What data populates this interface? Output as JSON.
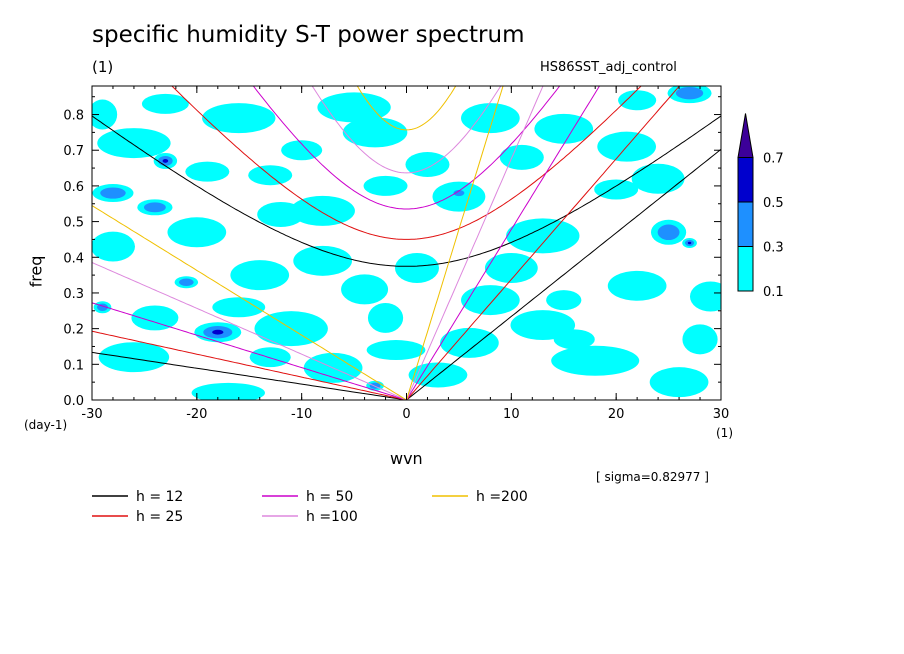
{
  "chart_data": {
    "type": "heatmap",
    "title": "specific humidity S-T power spectrum",
    "subtitle": "(1)",
    "experiment": "HS86SST_adj_control",
    "xlabel": "wvn",
    "ylabel": "freq",
    "x_unit": "(1)",
    "y_unit": "(day-1)",
    "sigma_note": "[ sigma=0.82977 ]",
    "xlim": [
      -30,
      30
    ],
    "ylim": [
      0,
      0.88
    ],
    "x_ticks": [
      -30,
      -20,
      -10,
      0,
      10,
      20,
      30
    ],
    "x_tick_labels": [
      "-30",
      "-20",
      "-10",
      "0",
      "10",
      "20",
      "30"
    ],
    "y_ticks": [
      0,
      0.1,
      0.2,
      0.3,
      0.4,
      0.5,
      0.6,
      0.7,
      0.8
    ],
    "y_tick_labels": [
      "0.0",
      "0.1",
      "0.2",
      "0.3",
      "0.4",
      "0.5",
      "0.6",
      "0.7",
      "0.8"
    ],
    "color_levels": [
      {
        "label": "0.1",
        "color": "#00ffff"
      },
      {
        "label": "0.3",
        "color": "#1e90ff"
      },
      {
        "label": "0.5",
        "color": "#0000cd"
      },
      {
        "label": "0.7",
        "color": "#3c0099"
      }
    ],
    "dispersion_curves": [
      {
        "name": "h = 12",
        "h": 12,
        "color": "#000000"
      },
      {
        "name": "h = 25",
        "h": 25,
        "color": "#e01010"
      },
      {
        "name": "h = 50",
        "h": 50,
        "color": "#cc00cc"
      },
      {
        "name": "h =100",
        "h": 100,
        "color": "#dd88dd"
      },
      {
        "name": "h =200",
        "h": 200,
        "color": "#f0c000"
      }
    ],
    "patches": [
      [
        -28,
        0.58,
        1.4,
        0.018,
        2
      ],
      [
        -23,
        0.67,
        0.8,
        0.016,
        3
      ],
      [
        -24,
        0.54,
        1.2,
        0.016,
        2
      ],
      [
        -18,
        0.19,
        1.6,
        0.02,
        3
      ],
      [
        -21,
        0.33,
        0.8,
        0.012,
        2
      ],
      [
        -14,
        0.35,
        2.0,
        0.03,
        1
      ],
      [
        -26,
        0.72,
        2.5,
        0.03,
        1
      ],
      [
        -29,
        0.26,
        0.6,
        0.012,
        2
      ],
      [
        -11,
        0.2,
        2.5,
        0.035,
        1
      ],
      [
        -5,
        0.82,
        2.5,
        0.03,
        1
      ],
      [
        3,
        0.07,
        2.0,
        0.025,
        1
      ],
      [
        -3,
        0.04,
        0.6,
        0.01,
        2
      ],
      [
        5,
        0.57,
        1.8,
        0.03,
        1
      ],
      [
        5,
        0.58,
        0.6,
        0.01,
        2
      ],
      [
        8,
        0.28,
        2.0,
        0.03,
        1
      ],
      [
        -2,
        0.6,
        1.5,
        0.02,
        1
      ],
      [
        -2,
        0.23,
        1.2,
        0.03,
        1
      ],
      [
        13,
        0.46,
        2.5,
        0.035,
        1
      ],
      [
        15,
        0.76,
        2.0,
        0.03,
        1
      ],
      [
        21,
        0.71,
        2.0,
        0.03,
        1
      ],
      [
        25,
        0.47,
        1.2,
        0.025,
        2
      ],
      [
        27,
        0.44,
        0.5,
        0.01,
        3
      ],
      [
        27,
        0.86,
        1.5,
        0.02,
        2
      ],
      [
        20,
        0.59,
        1.5,
        0.02,
        1
      ],
      [
        24,
        0.62,
        1.8,
        0.03,
        1
      ],
      [
        13,
        0.21,
        2.2,
        0.03,
        1
      ],
      [
        18,
        0.11,
        3.0,
        0.03,
        1
      ],
      [
        26,
        0.05,
        2.0,
        0.03,
        1
      ],
      [
        -8,
        0.53,
        2.2,
        0.03,
        1
      ],
      [
        -16,
        0.79,
        2.5,
        0.03,
        1
      ],
      [
        -20,
        0.47,
        2.0,
        0.03,
        1
      ],
      [
        -26,
        0.12,
        2.4,
        0.03,
        1
      ],
      [
        -17,
        0.02,
        2.5,
        0.02,
        1
      ],
      [
        -7,
        0.09,
        2.0,
        0.03,
        1
      ],
      [
        10,
        0.37,
        1.8,
        0.03,
        1
      ],
      [
        -8,
        0.39,
        2.0,
        0.03,
        1
      ],
      [
        1,
        0.37,
        1.5,
        0.03,
        1
      ],
      [
        22,
        0.32,
        2.0,
        0.03,
        1
      ],
      [
        -13,
        0.63,
        1.5,
        0.02,
        1
      ],
      [
        -3,
        0.75,
        2.2,
        0.03,
        1
      ],
      [
        2,
        0.66,
        1.5,
        0.025,
        1
      ],
      [
        11,
        0.68,
        1.5,
        0.025,
        1
      ],
      [
        -23,
        0.83,
        1.6,
        0.02,
        1
      ],
      [
        -28,
        0.43,
        1.5,
        0.03,
        1
      ],
      [
        29,
        0.29,
        1.4,
        0.03,
        1
      ],
      [
        -16,
        0.26,
        1.8,
        0.02,
        1
      ],
      [
        6,
        0.16,
        2.0,
        0.03,
        1
      ],
      [
        16,
        0.17,
        1.4,
        0.02,
        1
      ],
      [
        -12,
        0.52,
        1.6,
        0.025,
        1
      ],
      [
        -4,
        0.31,
        1.6,
        0.03,
        1
      ],
      [
        -24,
        0.23,
        1.6,
        0.025,
        1
      ],
      [
        -1,
        0.14,
        2.0,
        0.02,
        1
      ],
      [
        28,
        0.17,
        1.2,
        0.03,
        1
      ],
      [
        -10,
        0.7,
        1.4,
        0.02,
        1
      ],
      [
        8,
        0.79,
        2.0,
        0.03,
        1
      ],
      [
        -19,
        0.64,
        1.5,
        0.02,
        1
      ],
      [
        15,
        0.28,
        1.2,
        0.02,
        1
      ],
      [
        -29,
        0.8,
        1.0,
        0.03,
        1
      ],
      [
        22,
        0.84,
        1.3,
        0.02,
        1
      ],
      [
        -13,
        0.12,
        1.4,
        0.02,
        1
      ]
    ]
  },
  "legend": [
    {
      "label": "h = 12",
      "color": "#000000"
    },
    {
      "label": "h = 50",
      "color": "#cc00cc"
    },
    {
      "label": "h =200",
      "color": "#f0c000"
    },
    {
      "label": "h = 25",
      "color": "#e01010"
    },
    {
      "label": "h =100",
      "color": "#dd88dd"
    }
  ]
}
